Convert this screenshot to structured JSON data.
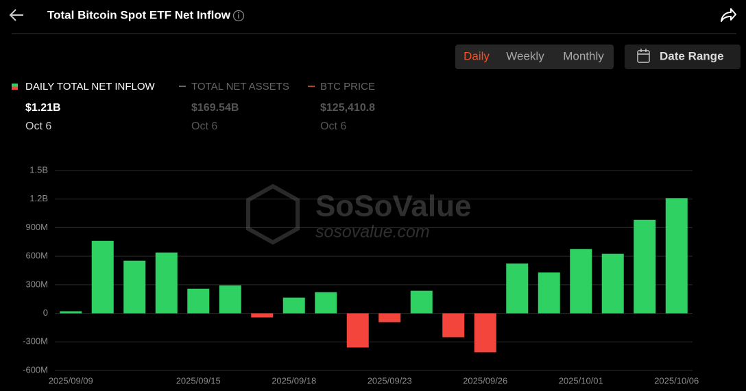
{
  "header": {
    "title": "Total Bitcoin Spot ETF Net Inflow"
  },
  "controls": {
    "periods": [
      "Daily",
      "Weekly",
      "Monthly"
    ],
    "date_range": "Date Range"
  },
  "legend": [
    {
      "label": "DAILY TOTAL NET INFLOW",
      "value": "$1.21B",
      "date": "Oct 6"
    },
    {
      "label": "TOTAL NET ASSETS",
      "value": "$169.54B",
      "date": "Oct 6"
    },
    {
      "label": "BTC PRICE",
      "value": "$125,410.8",
      "date": "Oct 6"
    }
  ],
  "watermark": {
    "brand": "SoSoValue",
    "url": "sosovalue.com"
  },
  "chart_data": {
    "type": "bar",
    "categories": [
      "2025/09/09",
      null,
      null,
      null,
      "2025/09/15",
      null,
      null,
      "2025/09/18",
      null,
      null,
      "2025/09/23",
      null,
      null,
      "2025/09/26",
      null,
      null,
      "2025/10/01",
      null,
      null,
      "2025/10/06"
    ],
    "values": [
      22000000,
      761000000,
      553000000,
      639000000,
      258000000,
      294000000,
      -43000000,
      165000000,
      222000000,
      -359000000,
      -93000000,
      237000000,
      -251000000,
      -409000000,
      524000000,
      430000000,
      675000000,
      625000000,
      983000000,
      1210000000
    ],
    "colors": {
      "positive": "#2fd163",
      "negative": "#f4453d"
    },
    "ylim": [
      -600000000,
      1500000000
    ],
    "yticks": [
      {
        "value": -600000000,
        "label": "-600M"
      },
      {
        "value": -300000000,
        "label": "-300M"
      },
      0,
      {
        "value": 300000000,
        "label": "300M"
      },
      {
        "value": 600000000,
        "label": "600M"
      },
      {
        "value": 900000000,
        "label": "900M"
      },
      {
        "value": 1200000000,
        "label": "1.2B"
      },
      {
        "value": 1500000000,
        "label": "1.5B"
      }
    ],
    "grid": true
  }
}
